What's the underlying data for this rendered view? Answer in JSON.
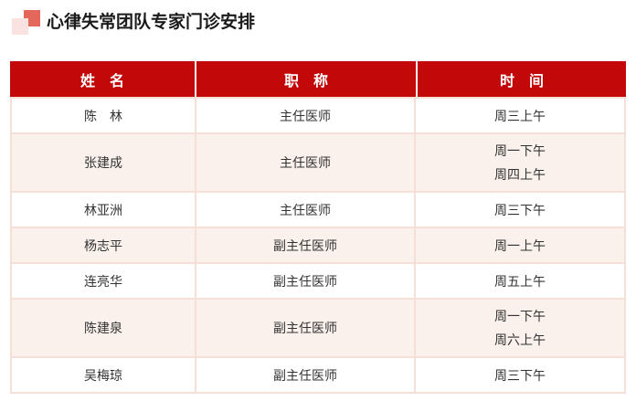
{
  "page": {
    "title": "心律失常团队专家门诊安排"
  },
  "icon": {
    "name": "overlapping-squares-bullet"
  },
  "table": {
    "headers": [
      "姓　名",
      "职　称",
      "时　间"
    ],
    "rows": [
      {
        "name": "陈　林",
        "title": "主任医师",
        "times": [
          "周三上午"
        ]
      },
      {
        "name": "张建成",
        "title": "主任医师",
        "times": [
          "周一下午",
          "周四上午"
        ]
      },
      {
        "name": "林亚洲",
        "title": "主任医师",
        "times": [
          "周三下午"
        ]
      },
      {
        "name": "杨志平",
        "title": "副主任医师",
        "times": [
          "周一上午"
        ]
      },
      {
        "name": "连亮华",
        "title": "副主任医师",
        "times": [
          "周五上午"
        ]
      },
      {
        "name": "陈建泉",
        "title": "副主任医师",
        "times": [
          "周一下午",
          "周六上午"
        ]
      },
      {
        "name": "吴梅琼",
        "title": "副主任医师",
        "times": [
          "周三下午"
        ]
      }
    ]
  },
  "colors": {
    "header_bg": "#c20808",
    "header_text": "#ffffff",
    "row_bg": "#ffffff",
    "row_alt_bg": "#faf0ec",
    "grid_line": "#f6dfd6",
    "icon_coral": "#e4675b",
    "icon_pink": "#f9e2e0",
    "text": "#333333",
    "title_text": "#1a1a1a"
  }
}
